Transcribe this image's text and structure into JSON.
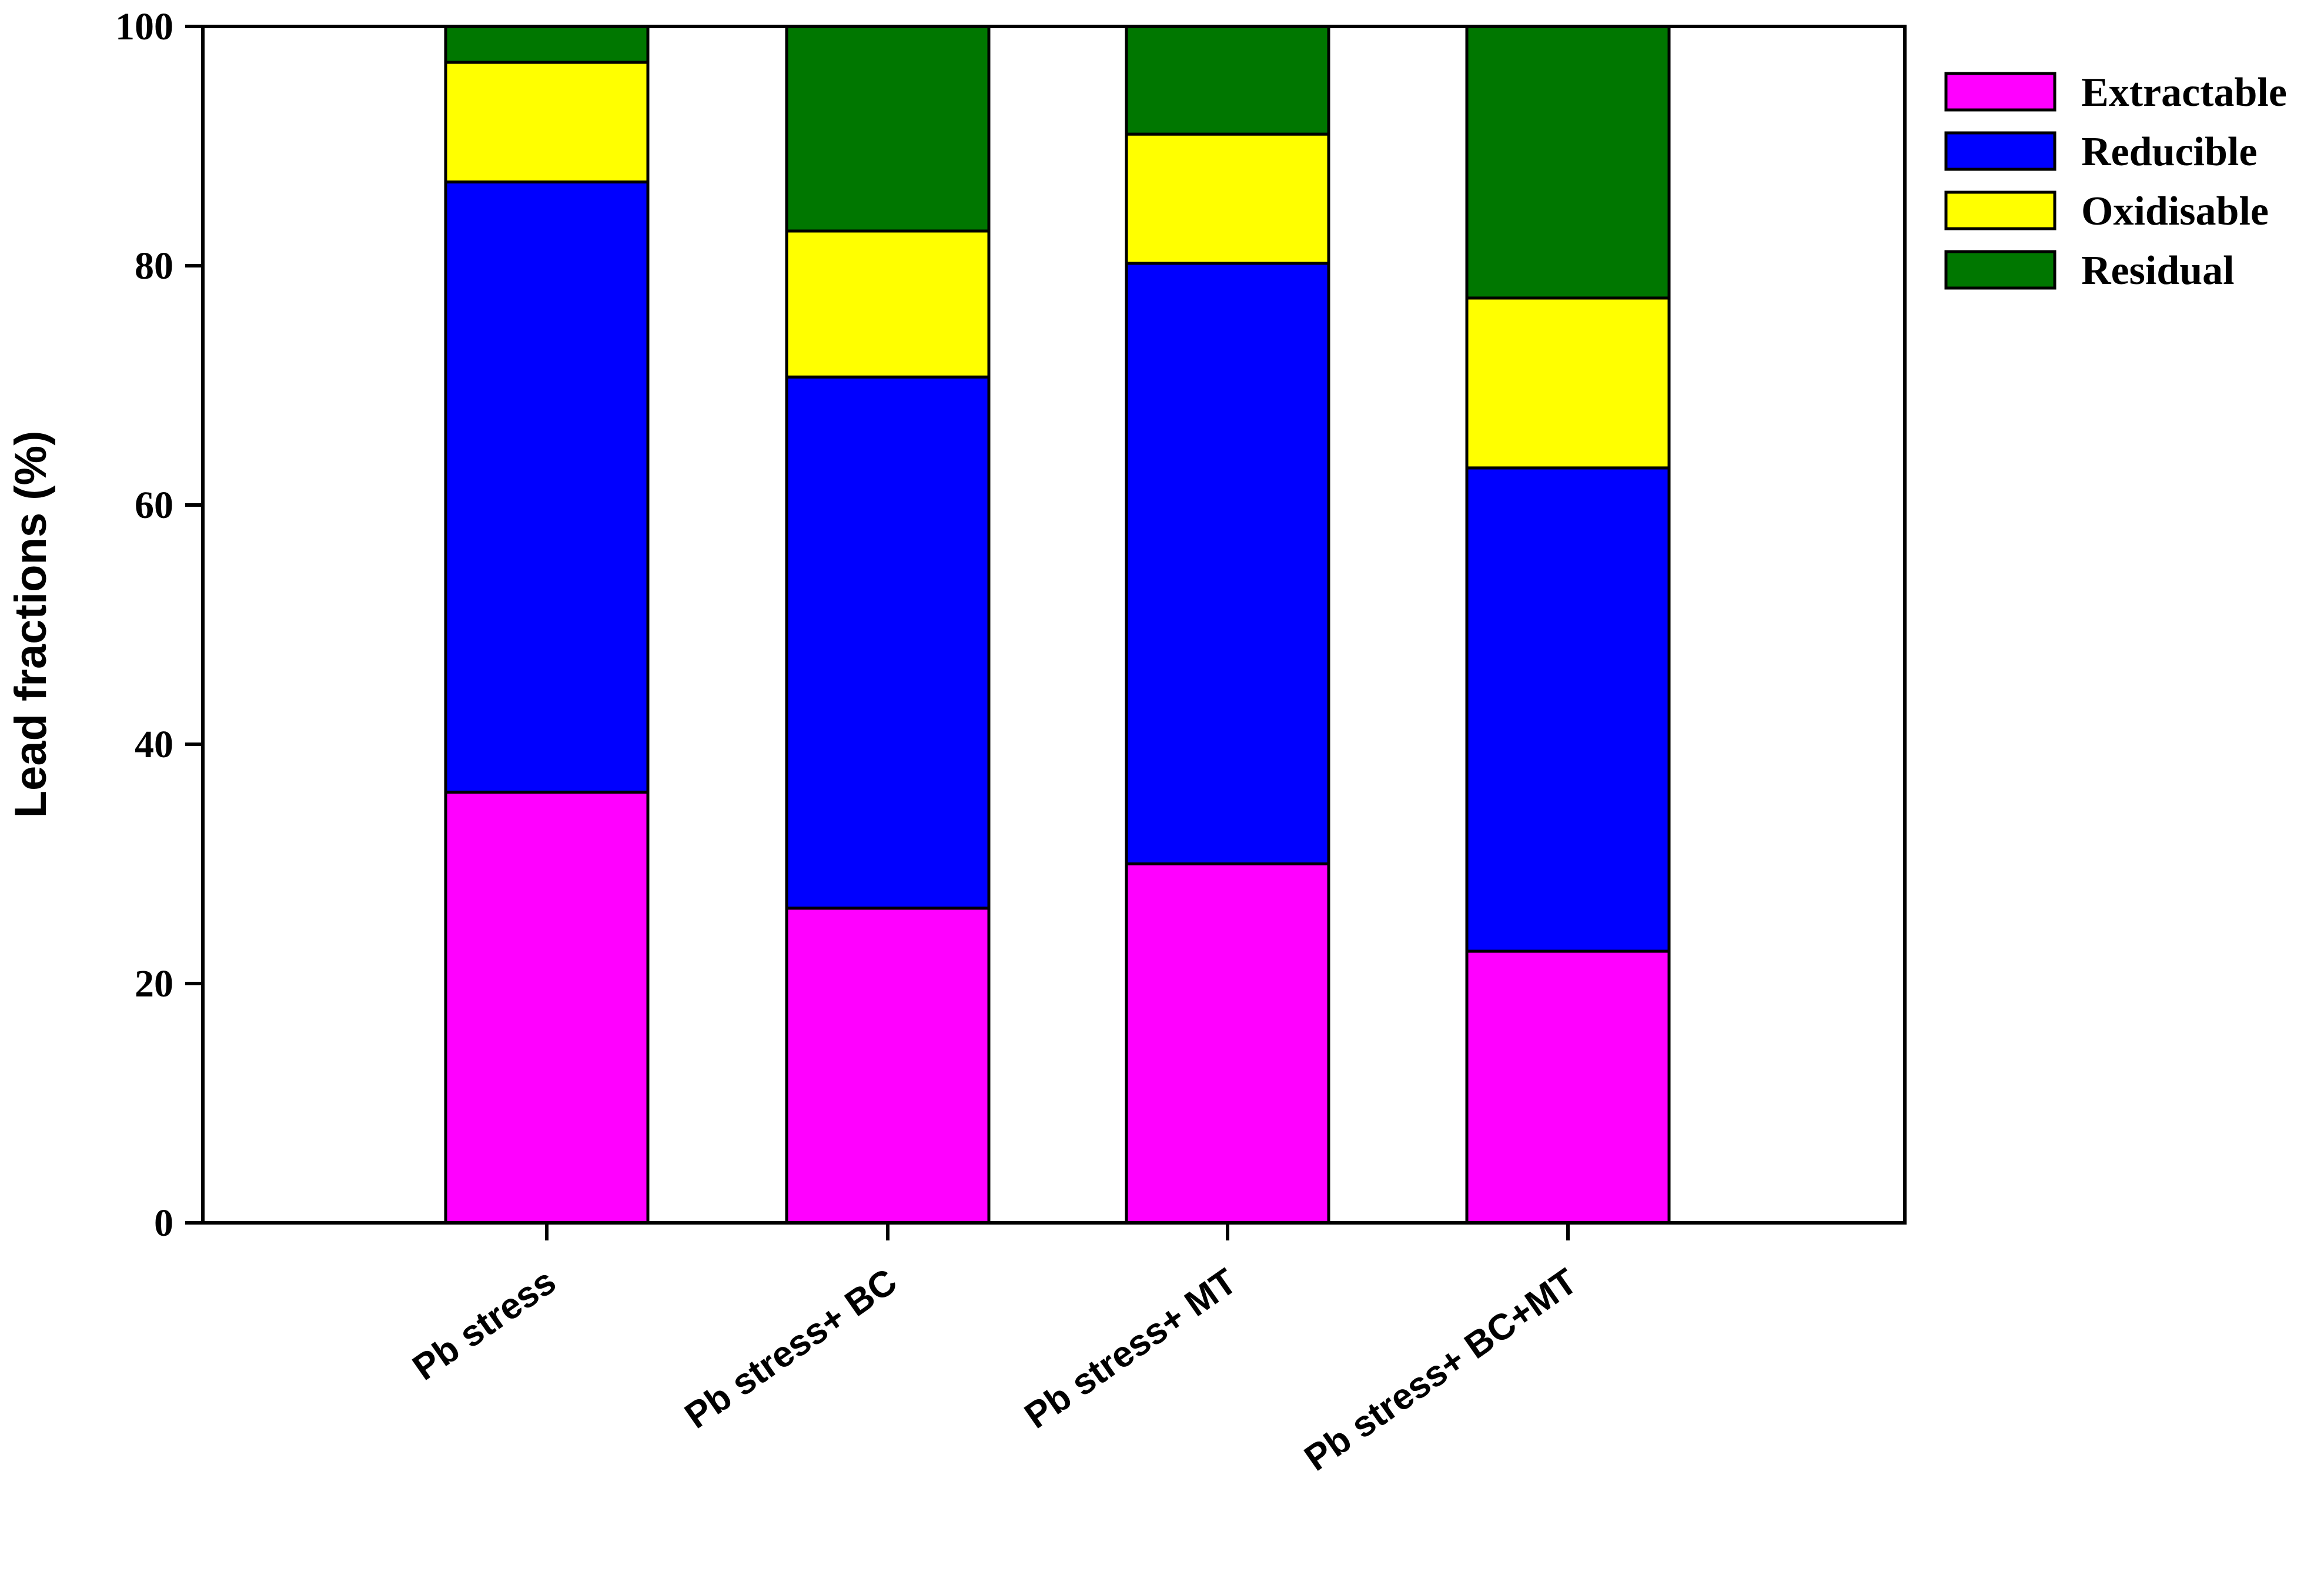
{
  "chart_data": {
    "type": "bar",
    "stacked": true,
    "categories": [
      "Pb stress",
      "Pb stress+ BC",
      "Pb stress+ MT",
      "Pb stress+ BC+MT"
    ],
    "series": [
      {
        "name": "Extractable",
        "color": "#ff00ff",
        "values": [
          36,
          26.3,
          30,
          22.7
        ]
      },
      {
        "name": "Reducible",
        "color": "#0000ff",
        "values": [
          51,
          44.4,
          50.2,
          40.4
        ]
      },
      {
        "name": "Oxidisable",
        "color": "#ffff00",
        "values": [
          10,
          12.2,
          10.8,
          14.2
        ]
      },
      {
        "name": "Residual",
        "color": "#007700",
        "values": [
          3,
          17.1,
          9,
          22.7
        ]
      }
    ],
    "title": "",
    "xlabel": "",
    "ylabel": "Lead fractions (%)",
    "ylim": [
      0,
      100
    ],
    "yticks": [
      "0",
      "20",
      "40",
      "60",
      "80",
      "100"
    ],
    "grid": false,
    "legend_position": "top-right"
  }
}
